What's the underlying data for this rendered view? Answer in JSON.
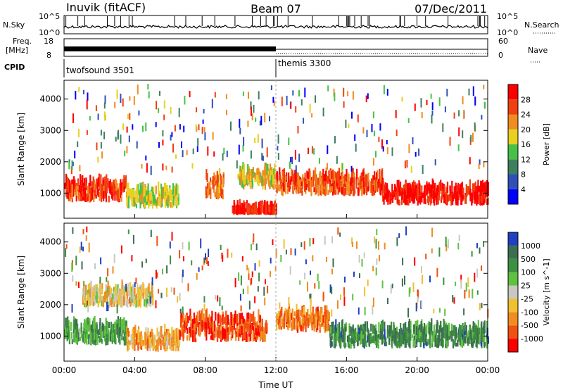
{
  "header": {
    "station": "Inuvik (fitACF)",
    "beam": "Beam 07",
    "date": "07/Dec/2011"
  },
  "noise_panel": {
    "left_label": "N.Sky",
    "right_label": "N.Search",
    "ticks_left": [
      "10^5",
      "10^0"
    ],
    "ticks_right": [
      "10^5",
      "10^0"
    ]
  },
  "freq_panel": {
    "left_label_line1": "Freq.",
    "left_label_line2": "[MHz]",
    "right_label": "Nave",
    "ticks_left": [
      "18",
      "8"
    ],
    "ticks_right": [
      "60",
      "0"
    ]
  },
  "cpid_panel": {
    "label": "CPID",
    "modes": [
      {
        "name": "twofsound 3501",
        "start_hour": 0
      },
      {
        "name": "themis 3300",
        "start_hour": 12
      }
    ]
  },
  "chart_data": [
    {
      "type": "heatmap",
      "name": "power",
      "ylabel": "Slant Range [km]",
      "xlabel": "",
      "xlim": [
        0,
        24
      ],
      "ylim": [
        200,
        4600
      ],
      "yticks": [
        "1000",
        "2000",
        "3000",
        "4000"
      ],
      "ytick_values": [
        1000,
        2000,
        3000,
        4000
      ],
      "colorbar": {
        "label": "Power [dB]",
        "ticks": [
          "4",
          "8",
          "12",
          "16",
          "20",
          "24",
          "28"
        ],
        "colors": [
          "#0000ff",
          "#3050b8",
          "#3c8060",
          "#48c048",
          "#e8d020",
          "#f08c20",
          "#f04010",
          "#ff0000"
        ]
      },
      "bands": [
        {
          "x": [
            0,
            3.5
          ],
          "y": [
            700,
            1500
          ],
          "level": 0.85
        },
        {
          "x": [
            3.5,
            6.5
          ],
          "y": [
            500,
            1200
          ],
          "level": 0.55
        },
        {
          "x": [
            8,
            9
          ],
          "y": [
            800,
            1700
          ],
          "level": 0.75
        },
        {
          "x": [
            9.8,
            12
          ],
          "y": [
            1100,
            1800
          ],
          "level": 0.6
        },
        {
          "x": [
            9.5,
            12
          ],
          "y": [
            300,
            450
          ],
          "level": 0.9
        },
        {
          "x": [
            12,
            18
          ],
          "y": [
            900,
            1700
          ],
          "level": 0.8
        },
        {
          "x": [
            18,
            24
          ],
          "y": [
            600,
            1300
          ],
          "level": 0.95
        }
      ]
    },
    {
      "type": "heatmap",
      "name": "velocity",
      "ylabel": "Slant Range [km]",
      "xlabel": "Time UT",
      "xlim": [
        0,
        24
      ],
      "ylim": [
        200,
        4600
      ],
      "xticks": [
        "00:00",
        "04:00",
        "08:00",
        "12:00",
        "16:00",
        "20:00",
        "00:00"
      ],
      "xtick_values": [
        0,
        4,
        8,
        12,
        16,
        20,
        24
      ],
      "yticks": [
        "1000",
        "2000",
        "3000",
        "4000"
      ],
      "ytick_values": [
        1000,
        2000,
        3000,
        4000
      ],
      "colorbar": {
        "label": "Velocity [m s^-1]",
        "ticks": [
          "1000",
          "500",
          "100",
          "25",
          "-25",
          "-100",
          "-500",
          "-1000"
        ],
        "colors": [
          "#2040c0",
          "#3c6e50",
          "#3c9040",
          "#60c040",
          "#c8c8c0",
          "#f0c030",
          "#f08c20",
          "#f05010",
          "#ff0000"
        ]
      },
      "bands": [
        {
          "x": [
            0,
            3.5
          ],
          "y": [
            700,
            1500
          ],
          "level": 0.7
        },
        {
          "x": [
            3.5,
            6.5
          ],
          "y": [
            500,
            1200
          ],
          "level": 0.35
        },
        {
          "x": [
            6.5,
            11.5
          ],
          "y": [
            800,
            1800
          ],
          "level": 0.15
        },
        {
          "x": [
            12,
            15
          ],
          "y": [
            1100,
            1900
          ],
          "level": 0.25
        },
        {
          "x": [
            15,
            24
          ],
          "y": [
            600,
            1400
          ],
          "level": 0.75
        },
        {
          "x": [
            1,
            5
          ],
          "y": [
            1900,
            2600
          ],
          "level": 0.45
        }
      ]
    }
  ]
}
